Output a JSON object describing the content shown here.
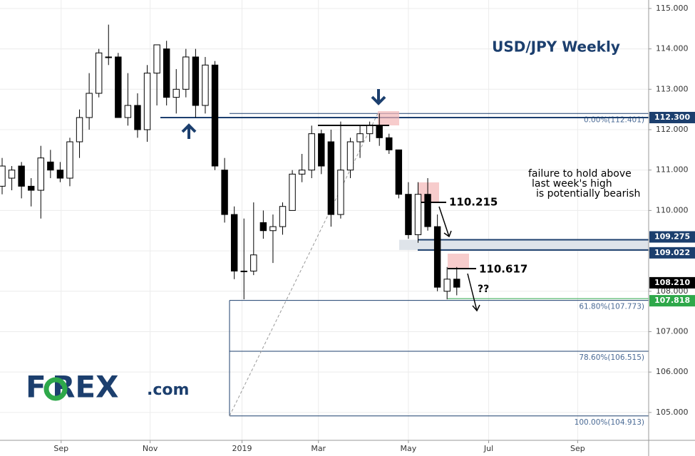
{
  "chart_data": {
    "type": "candlestick",
    "title": "USD/JPY Weekly",
    "x": [
      0,
      1,
      2,
      3,
      4,
      5,
      6,
      7,
      8,
      9,
      10,
      11,
      12,
      13,
      14,
      15,
      16,
      17,
      18,
      19,
      20,
      21,
      22,
      23,
      24,
      25,
      26,
      27,
      28,
      29,
      30,
      31,
      32,
      33,
      34,
      35,
      36,
      37,
      38,
      39,
      40,
      41,
      42,
      43,
      44,
      45,
      46,
      47
    ],
    "open": [
      110.6,
      110.8,
      111.1,
      110.6,
      110.5,
      111.2,
      111.0,
      110.8,
      111.7,
      112.3,
      112.9,
      113.8,
      113.8,
      112.3,
      112.6,
      112.0,
      113.4,
      114.0,
      112.8,
      113.0,
      113.8,
      112.6,
      113.6,
      111.0,
      109.9,
      108.5,
      108.5,
      109.7,
      109.5,
      109.6,
      110.0,
      110.9,
      111.0,
      111.9,
      111.7,
      109.9,
      111.0,
      111.7,
      111.9,
      112.1,
      111.8,
      111.5,
      110.4,
      109.4,
      110.4,
      109.6,
      108.0,
      108.3
    ],
    "high": [
      111.3,
      111.1,
      111.2,
      110.8,
      111.6,
      111.5,
      111.2,
      111.8,
      112.5,
      113.4,
      114.0,
      114.6,
      113.9,
      113.4,
      112.9,
      113.6,
      114.1,
      114.2,
      113.5,
      114.0,
      114.0,
      113.8,
      113.7,
      111.3,
      110.1,
      109.8,
      110.2,
      110.0,
      109.9,
      110.2,
      111.0,
      111.4,
      112.1,
      112.0,
      112.0,
      112.2,
      111.8,
      112.1,
      112.2,
      112.4,
      111.9,
      111.5,
      110.7,
      110.7,
      110.8,
      109.9,
      108.6,
      108.6
    ],
    "low": [
      110.4,
      110.5,
      110.3,
      110.1,
      109.8,
      110.8,
      110.7,
      110.6,
      111.3,
      112.0,
      112.8,
      113.6,
      112.3,
      112.1,
      111.8,
      111.7,
      112.6,
      112.6,
      112.4,
      112.8,
      112.3,
      112.4,
      111.0,
      109.7,
      108.3,
      107.8,
      108.4,
      109.3,
      108.7,
      109.4,
      110.0,
      110.7,
      110.8,
      110.9,
      109.6,
      109.8,
      110.8,
      111.3,
      111.7,
      111.6,
      111.4,
      110.3,
      109.3,
      109.2,
      109.5,
      108.0,
      107.8,
      107.9
    ],
    "close": [
      111.1,
      111.0,
      110.6,
      110.5,
      111.3,
      111.0,
      110.8,
      111.7,
      112.3,
      112.9,
      113.9,
      113.8,
      112.3,
      112.6,
      112.0,
      113.4,
      114.1,
      112.8,
      113.0,
      113.8,
      112.6,
      113.6,
      111.1,
      109.9,
      108.5,
      108.5,
      108.9,
      109.5,
      109.6,
      110.1,
      110.9,
      111.0,
      111.9,
      111.1,
      109.9,
      111.0,
      111.7,
      111.9,
      112.1,
      111.8,
      111.5,
      110.4,
      109.4,
      110.4,
      109.6,
      108.1,
      108.3,
      108.1
    ],
    "xlim": [
      -0.22,
      66.84
    ],
    "xticks": [
      {
        "value": 6.1,
        "label": "Sep"
      },
      {
        "value": 15.3,
        "label": "Nov"
      },
      {
        "value": 24.8,
        "label": "2019"
      },
      {
        "value": 32.7,
        "label": "Mar"
      },
      {
        "value": 42,
        "label": "May"
      },
      {
        "value": 50.3,
        "label": "Jul"
      },
      {
        "value": 59.5,
        "label": "Sep"
      }
    ],
    "ylim": [
      104.31,
      115.21
    ],
    "yticks": [
      {
        "value": 105,
        "label": "105.000"
      },
      {
        "value": 106,
        "label": "106.000"
      },
      {
        "value": 107,
        "label": "107.000"
      },
      {
        "value": 108,
        "label": "108.000"
      },
      {
        "value": 109,
        "label": "109.000"
      },
      {
        "value": 110,
        "label": "110.000"
      },
      {
        "value": 111,
        "label": "111.000"
      },
      {
        "value": 112,
        "label": "112.000"
      },
      {
        "value": 113,
        "label": "113.000"
      },
      {
        "value": 114,
        "label": "114.000"
      },
      {
        "value": 115,
        "label": "115.000"
      }
    ],
    "grid": true,
    "price_levels": [
      {
        "value": 112.3,
        "label": "112.300",
        "color": "#1c3f6e"
      },
      {
        "value": 109.275,
        "label": "109.275",
        "color": "#1c3f6e"
      },
      {
        "value": 109.022,
        "label": "109.022",
        "color": "#1c3f6e"
      },
      {
        "value": 108.21,
        "label": "108.210",
        "color": "#000000"
      },
      {
        "value": 107.818,
        "label": "107.818",
        "color": "#2ea84a"
      }
    ],
    "fib_levels": [
      {
        "value": 112.401,
        "label": "0.00%(112.401)"
      },
      {
        "value": 107.773,
        "label": "61.80%(107.773)"
      },
      {
        "value": 106.515,
        "label": "78.60%(106.515)"
      },
      {
        "value": 104.913,
        "label": "100.00%(104.913)"
      }
    ],
    "annotations": [
      110.215,
      110.617,
      "??",
      "failure to hold above",
      "last week's high",
      "is potentially bearish"
    ],
    "logo": {
      "main": "F REX",
      "suffix": ".com"
    }
  }
}
